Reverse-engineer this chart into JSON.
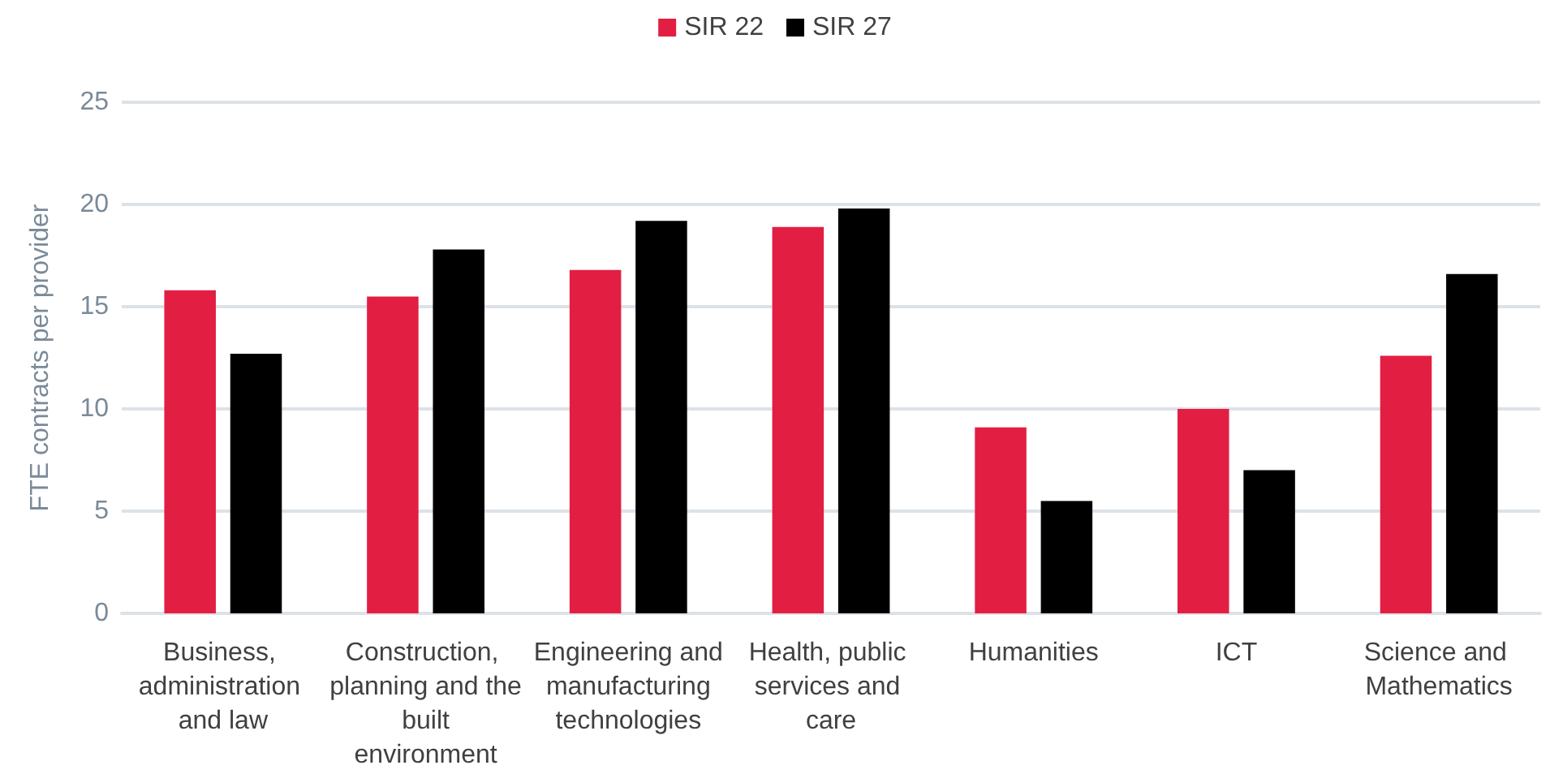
{
  "chart_data": {
    "type": "bar",
    "categories": [
      "Business, administration and law",
      "Construction, planning and the built environment",
      "Engineering and manufacturing technologies",
      "Health, public services and care",
      "Humanities",
      "ICT",
      "Science and Mathematics"
    ],
    "series": [
      {
        "name": "SIR 22",
        "color": "#e31e43",
        "values": [
          15.8,
          15.5,
          16.8,
          18.9,
          9.1,
          10.0,
          12.6
        ]
      },
      {
        "name": "SIR 27",
        "color": "#000000",
        "values": [
          12.7,
          17.8,
          19.2,
          19.8,
          5.5,
          7.0,
          16.6
        ]
      }
    ],
    "ylabel": "FTE contracts per provider",
    "ylim": [
      0,
      25
    ],
    "yticks": [
      0,
      5,
      10,
      15,
      20,
      25
    ],
    "grid": "y",
    "legend": "top"
  }
}
